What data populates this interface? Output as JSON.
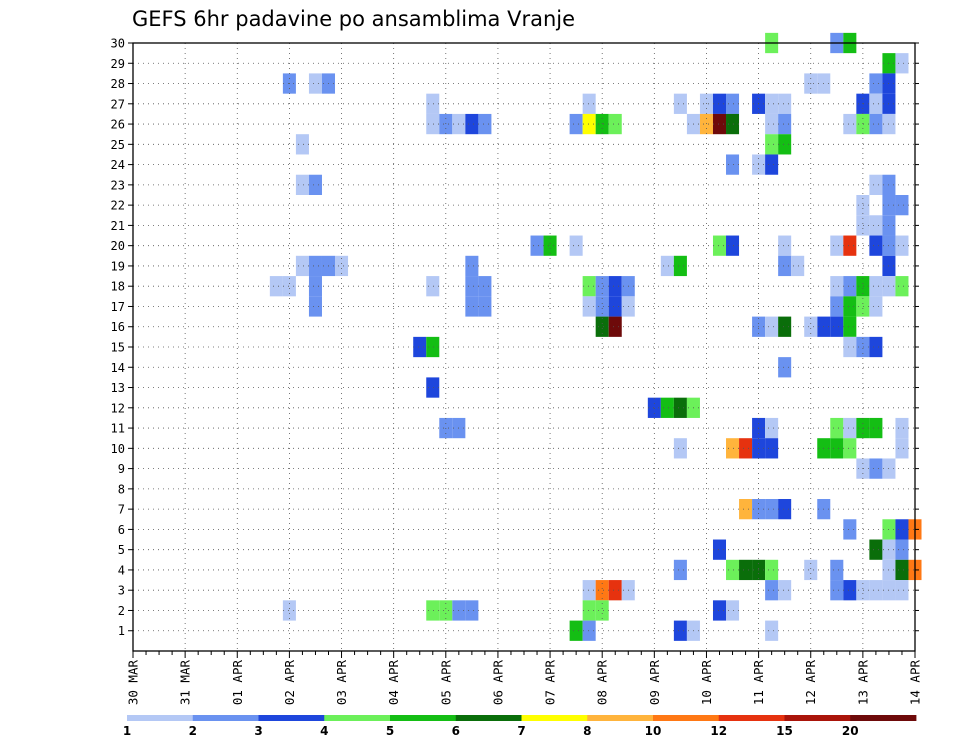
{
  "chart_data": {
    "type": "heatmap",
    "title": "GEFS 6hr padavine po ansamblima Vranje",
    "x_tick_labels": [
      "30 MAR",
      "31 MAR",
      "01 APR",
      "02 APR",
      "03 APR",
      "04 APR",
      "05 APR",
      "06 APR",
      "07 APR",
      "08 APR",
      "09 APR",
      "10 APR",
      "11 APR",
      "12 APR",
      "13 APR",
      "14 APR"
    ],
    "y_tick_labels": [
      "1",
      "2",
      "3",
      "4",
      "5",
      "6",
      "7",
      "8",
      "9",
      "10",
      "11",
      "12",
      "13",
      "14",
      "15",
      "16",
      "17",
      "18",
      "19",
      "20",
      "21",
      "22",
      "23",
      "24",
      "25",
      "26",
      "27",
      "28",
      "29",
      "30"
    ],
    "xlim": [
      "30 MAR 00Z",
      "14 APR 00Z"
    ],
    "time_step_hours": 6,
    "ylim": [
      1,
      30
    ],
    "grid": true,
    "legend": {
      "placement": "bottom",
      "labels": [
        "1",
        "2",
        "3",
        "4",
        "5",
        "6",
        "7",
        "8",
        "10",
        "12",
        "15",
        "20"
      ],
      "colors": [
        "#b4c8f5",
        "#6a92f0",
        "#1e46dc",
        "#6cf05a",
        "#14be14",
        "#0a6e0a",
        "#ffff00",
        "#ffb43c",
        "#ff7814",
        "#e6320f",
        "#aa140a",
        "#6e0a0a"
      ]
    },
    "cells": [
      {
        "t": "02 APR 00Z",
        "m": 28,
        "v": 2.5
      },
      {
        "t": "02 APR 12Z",
        "m": 28,
        "v": 1.5
      },
      {
        "t": "02 APR 18Z",
        "m": 28,
        "v": 2.5
      },
      {
        "t": "02 APR 06Z",
        "m": 25,
        "v": 1.5
      },
      {
        "t": "02 APR 06Z",
        "m": 23,
        "v": 1.5
      },
      {
        "t": "02 APR 12Z",
        "m": 23,
        "v": 2.5
      },
      {
        "t": "02 APR 06Z",
        "m": 19,
        "v": 1.5
      },
      {
        "t": "02 APR 12Z",
        "m": 19,
        "v": 2.5
      },
      {
        "t": "02 APR 18Z",
        "m": 19,
        "v": 2.5
      },
      {
        "t": "03 APR 00Z",
        "m": 19,
        "v": 1.5
      },
      {
        "t": "01 APR 18Z",
        "m": 18,
        "v": 1.5
      },
      {
        "t": "02 APR 00Z",
        "m": 18,
        "v": 1.5
      },
      {
        "t": "02 APR 12Z",
        "m": 18,
        "v": 2.5
      },
      {
        "t": "02 APR 12Z",
        "m": 17,
        "v": 2.5
      },
      {
        "t": "02 APR 00Z",
        "m": 2,
        "v": 1.5
      },
      {
        "t": "04 APR 18Z",
        "m": 27,
        "v": 1.5
      },
      {
        "t": "04 APR 18Z",
        "m": 26,
        "v": 1.5
      },
      {
        "t": "05 APR 00Z",
        "m": 26,
        "v": 2.5
      },
      {
        "t": "05 APR 06Z",
        "m": 26,
        "v": 1.5
      },
      {
        "t": "05 APR 12Z",
        "m": 26,
        "v": 3.5
      },
      {
        "t": "05 APR 18Z",
        "m": 26,
        "v": 2.5
      },
      {
        "t": "05 APR 12Z",
        "m": 19,
        "v": 2.5
      },
      {
        "t": "04 APR 18Z",
        "m": 18,
        "v": 1.5
      },
      {
        "t": "05 APR 12Z",
        "m": 18,
        "v": 2.5
      },
      {
        "t": "05 APR 18Z",
        "m": 18,
        "v": 2.5
      },
      {
        "t": "05 APR 12Z",
        "m": 17,
        "v": 2.5
      },
      {
        "t": "05 APR 18Z",
        "m": 17,
        "v": 2.5
      },
      {
        "t": "04 APR 12Z",
        "m": 15,
        "v": 3.5
      },
      {
        "t": "04 APR 18Z",
        "m": 15,
        "v": 5.5
      },
      {
        "t": "04 APR 18Z",
        "m": 13,
        "v": 3.5
      },
      {
        "t": "05 APR 00Z",
        "m": 11,
        "v": 2.5
      },
      {
        "t": "05 APR 06Z",
        "m": 11,
        "v": 2.5
      },
      {
        "t": "04 APR 18Z",
        "m": 2,
        "v": 4.5
      },
      {
        "t": "05 APR 00Z",
        "m": 2,
        "v": 4.5
      },
      {
        "t": "05 APR 06Z",
        "m": 2,
        "v": 2.5
      },
      {
        "t": "05 APR 12Z",
        "m": 2,
        "v": 2.5
      },
      {
        "t": "07 APR 18Z",
        "m": 27,
        "v": 1.5
      },
      {
        "t": "07 APR 12Z",
        "m": 26,
        "v": 2.5
      },
      {
        "t": "07 APR 18Z",
        "m": 26,
        "v": 7.5
      },
      {
        "t": "08 APR 00Z",
        "m": 26,
        "v": 5.5
      },
      {
        "t": "08 APR 06Z",
        "m": 26,
        "v": 4.5
      },
      {
        "t": "06 APR 18Z",
        "m": 20,
        "v": 2.5
      },
      {
        "t": "07 APR 00Z",
        "m": 20,
        "v": 5.5
      },
      {
        "t": "07 APR 12Z",
        "m": 20,
        "v": 1.5
      },
      {
        "t": "07 APR 18Z",
        "m": 18,
        "v": 4.5
      },
      {
        "t": "08 APR 00Z",
        "m": 18,
        "v": 2.5
      },
      {
        "t": "08 APR 06Z",
        "m": 18,
        "v": 3.5
      },
      {
        "t": "08 APR 12Z",
        "m": 18,
        "v": 2.5
      },
      {
        "t": "07 APR 18Z",
        "m": 17,
        "v": 1.5
      },
      {
        "t": "08 APR 00Z",
        "m": 17,
        "v": 2.5
      },
      {
        "t": "08 APR 06Z",
        "m": 17,
        "v": 3.5
      },
      {
        "t": "08 APR 12Z",
        "m": 17,
        "v": 1.5
      },
      {
        "t": "08 APR 00Z",
        "m": 16,
        "v": 6.5
      },
      {
        "t": "08 APR 06Z",
        "m": 16,
        "v": 25
      },
      {
        "t": "07 APR 18Z",
        "m": 3,
        "v": 1.5
      },
      {
        "t": "08 APR 00Z",
        "m": 3,
        "v": 11
      },
      {
        "t": "08 APR 06Z",
        "m": 3,
        "v": 13
      },
      {
        "t": "08 APR 12Z",
        "m": 3,
        "v": 1.5
      },
      {
        "t": "07 APR 18Z",
        "m": 2,
        "v": 4.5
      },
      {
        "t": "08 APR 00Z",
        "m": 2,
        "v": 4.5
      },
      {
        "t": "07 APR 12Z",
        "m": 1,
        "v": 5.5
      },
      {
        "t": "07 APR 18Z",
        "m": 1,
        "v": 2.5
      },
      {
        "t": "09 APR 12Z",
        "m": 27,
        "v": 1.5
      },
      {
        "t": "10 APR 00Z",
        "m": 27,
        "v": 1.5
      },
      {
        "t": "10 APR 06Z",
        "m": 27,
        "v": 3.5
      },
      {
        "t": "10 APR 12Z",
        "m": 27,
        "v": 2.5
      },
      {
        "t": "11 APR 00Z",
        "m": 27,
        "v": 3.5
      },
      {
        "t": "11 APR 06Z",
        "m": 27,
        "v": 1.5
      },
      {
        "t": "11 APR 12Z",
        "m": 27,
        "v": 1.5
      },
      {
        "t": "09 APR 18Z",
        "m": 26,
        "v": 1.5
      },
      {
        "t": "10 APR 00Z",
        "m": 26,
        "v": 8.5
      },
      {
        "t": "10 APR 06Z",
        "m": 26,
        "v": 25
      },
      {
        "t": "10 APR 12Z",
        "m": 26,
        "v": 6.5
      },
      {
        "t": "11 APR 06Z",
        "m": 26,
        "v": 1.5
      },
      {
        "t": "11 APR 12Z",
        "m": 26,
        "v": 2.5
      },
      {
        "t": "11 APR 06Z",
        "m": 25,
        "v": 4.5
      },
      {
        "t": "11 APR 12Z",
        "m": 25,
        "v": 5.5
      },
      {
        "t": "10 APR 12Z",
        "m": 24,
        "v": 2.5
      },
      {
        "t": "11 APR 00Z",
        "m": 24,
        "v": 1.5
      },
      {
        "t": "11 APR 06Z",
        "m": 24,
        "v": 3.5
      },
      {
        "t": "10 APR 06Z",
        "m": 20,
        "v": 4.5
      },
      {
        "t": "10 APR 12Z",
        "m": 20,
        "v": 3.5
      },
      {
        "t": "11 APR 12Z",
        "m": 20,
        "v": 1.5
      },
      {
        "t": "09 APR 06Z",
        "m": 19,
        "v": 1.5
      },
      {
        "t": "09 APR 12Z",
        "m": 19,
        "v": 5.5
      },
      {
        "t": "11 APR 12Z",
        "m": 19,
        "v": 2.5
      },
      {
        "t": "11 APR 18Z",
        "m": 19,
        "v": 1.5
      },
      {
        "t": "11 APR 00Z",
        "m": 16,
        "v": 2.5
      },
      {
        "t": "11 APR 06Z",
        "m": 16,
        "v": 1.5
      },
      {
        "t": "11 APR 12Z",
        "m": 16,
        "v": 6.5
      },
      {
        "t": "11 APR 12Z",
        "m": 14,
        "v": 2.5
      },
      {
        "t": "09 APR 00Z",
        "m": 12,
        "v": 3.5
      },
      {
        "t": "09 APR 06Z",
        "m": 12,
        "v": 5.5
      },
      {
        "t": "09 APR 12Z",
        "m": 12,
        "v": 6.5
      },
      {
        "t": "09 APR 18Z",
        "m": 12,
        "v": 4.5
      },
      {
        "t": "11 APR 00Z",
        "m": 11,
        "v": 3.5
      },
      {
        "t": "11 APR 06Z",
        "m": 11,
        "v": 1.5
      },
      {
        "t": "09 APR 12Z",
        "m": 10,
        "v": 1.5
      },
      {
        "t": "10 APR 12Z",
        "m": 10,
        "v": 9
      },
      {
        "t": "10 APR 18Z",
        "m": 10,
        "v": 13
      },
      {
        "t": "11 APR 00Z",
        "m": 10,
        "v": 3.5
      },
      {
        "t": "11 APR 06Z",
        "m": 10,
        "v": 3.5
      },
      {
        "t": "10 APR 18Z",
        "m": 7,
        "v": 9
      },
      {
        "t": "11 APR 00Z",
        "m": 7,
        "v": 2.5
      },
      {
        "t": "11 APR 06Z",
        "m": 7,
        "v": 2.5
      },
      {
        "t": "11 APR 12Z",
        "m": 7,
        "v": 3.5
      },
      {
        "t": "10 APR 06Z",
        "m": 5,
        "v": 3.5
      },
      {
        "t": "09 APR 12Z",
        "m": 4,
        "v": 2.5
      },
      {
        "t": "10 APR 12Z",
        "m": 4,
        "v": 4.5
      },
      {
        "t": "10 APR 18Z",
        "m": 4,
        "v": 6.5
      },
      {
        "t": "11 APR 00Z",
        "m": 4,
        "v": 6.5
      },
      {
        "t": "11 APR 06Z",
        "m": 4,
        "v": 4.5
      },
      {
        "t": "11 APR 06Z",
        "m": 3,
        "v": 2.5
      },
      {
        "t": "11 APR 12Z",
        "m": 3,
        "v": 1.5
      },
      {
        "t": "10 APR 06Z",
        "m": 2,
        "v": 3.5
      },
      {
        "t": "10 APR 12Z",
        "m": 2,
        "v": 1.5
      },
      {
        "t": "09 APR 12Z",
        "m": 1,
        "v": 3.5
      },
      {
        "t": "09 APR 18Z",
        "m": 1,
        "v": 1.5
      },
      {
        "t": "11 APR 06Z",
        "m": 1,
        "v": 1.5
      },
      {
        "t": "12 APR 12Z",
        "m": 30,
        "v": 2.5
      },
      {
        "t": "12 APR 18Z",
        "m": 30,
        "v": 5.5
      },
      {
        "t": "11 APR 06Z",
        "m": 30,
        "v": 4.5
      },
      {
        "t": "13 APR 12Z",
        "m": 29,
        "v": 5.5
      },
      {
        "t": "13 APR 18Z",
        "m": 29,
        "v": 1.5
      },
      {
        "t": "12 APR 00Z",
        "m": 28,
        "v": 1.5
      },
      {
        "t": "12 APR 06Z",
        "m": 28,
        "v": 1.5
      },
      {
        "t": "13 APR 06Z",
        "m": 28,
        "v": 2.5
      },
      {
        "t": "13 APR 12Z",
        "m": 28,
        "v": 3.5
      },
      {
        "t": "13 APR 00Z",
        "m": 27,
        "v": 3.5
      },
      {
        "t": "13 APR 06Z",
        "m": 27,
        "v": 1.5
      },
      {
        "t": "13 APR 12Z",
        "m": 27,
        "v": 3.5
      },
      {
        "t": "12 APR 18Z",
        "m": 26,
        "v": 1.5
      },
      {
        "t": "13 APR 06Z",
        "m": 26,
        "v": 2.5
      },
      {
        "t": "13 APR 00Z",
        "m": 26,
        "v": 4.5
      },
      {
        "t": "13 APR 12Z",
        "m": 26,
        "v": 1.5
      },
      {
        "t": "13 APR 06Z",
        "m": 23,
        "v": 1.5
      },
      {
        "t": "13 APR 12Z",
        "m": 23,
        "v": 2.5
      },
      {
        "t": "13 APR 00Z",
        "m": 22,
        "v": 1.5
      },
      {
        "t": "13 APR 12Z",
        "m": 22,
        "v": 2.5
      },
      {
        "t": "13 APR 18Z",
        "m": 22,
        "v": 2.5
      },
      {
        "t": "13 APR 00Z",
        "m": 21,
        "v": 1.5
      },
      {
        "t": "13 APR 06Z",
        "m": 21,
        "v": 1.5
      },
      {
        "t": "13 APR 12Z",
        "m": 21,
        "v": 2.5
      },
      {
        "t": "12 APR 12Z",
        "m": 20,
        "v": 1.5
      },
      {
        "t": "12 APR 18Z",
        "m": 20,
        "v": 13
      },
      {
        "t": "13 APR 06Z",
        "m": 20,
        "v": 3.5
      },
      {
        "t": "13 APR 12Z",
        "m": 20,
        "v": 2.5
      },
      {
        "t": "13 APR 18Z",
        "m": 20,
        "v": 1.5
      },
      {
        "t": "13 APR 12Z",
        "m": 19,
        "v": 3.5
      },
      {
        "t": "12 APR 12Z",
        "m": 18,
        "v": 1.5
      },
      {
        "t": "12 APR 18Z",
        "m": 18,
        "v": 2.5
      },
      {
        "t": "13 APR 00Z",
        "m": 18,
        "v": 5.5
      },
      {
        "t": "13 APR 06Z",
        "m": 18,
        "v": 1.5
      },
      {
        "t": "13 APR 12Z",
        "m": 18,
        "v": 1.5
      },
      {
        "t": "13 APR 18Z",
        "m": 18,
        "v": 4.5
      },
      {
        "t": "12 APR 12Z",
        "m": 17,
        "v": 2.5
      },
      {
        "t": "12 APR 18Z",
        "m": 17,
        "v": 5.5
      },
      {
        "t": "13 APR 00Z",
        "m": 17,
        "v": 4.5
      },
      {
        "t": "13 APR 06Z",
        "m": 17,
        "v": 1.5
      },
      {
        "t": "12 APR 06Z",
        "m": 16,
        "v": 3.5
      },
      {
        "t": "12 APR 12Z",
        "m": 16,
        "v": 3.5
      },
      {
        "t": "12 APR 18Z",
        "m": 16,
        "v": 5.5
      },
      {
        "t": "12 APR 00Z",
        "m": 16,
        "v": 1.5
      },
      {
        "t": "12 APR 18Z",
        "m": 15,
        "v": 1.5
      },
      {
        "t": "13 APR 00Z",
        "m": 15,
        "v": 2.5
      },
      {
        "t": "13 APR 06Z",
        "m": 15,
        "v": 3.5
      },
      {
        "t": "12 APR 12Z",
        "m": 11,
        "v": 4.5
      },
      {
        "t": "12 APR 18Z",
        "m": 11,
        "v": 1.5
      },
      {
        "t": "13 APR 00Z",
        "m": 11,
        "v": 5.5
      },
      {
        "t": "13 APR 06Z",
        "m": 11,
        "v": 5.5
      },
      {
        "t": "13 APR 18Z",
        "m": 11,
        "v": 1.5
      },
      {
        "t": "12 APR 06Z",
        "m": 10,
        "v": 5.5
      },
      {
        "t": "12 APR 12Z",
        "m": 10,
        "v": 5.5
      },
      {
        "t": "12 APR 18Z",
        "m": 10,
        "v": 4.5
      },
      {
        "t": "13 APR 18Z",
        "m": 10,
        "v": 1.5
      },
      {
        "t": "13 APR 00Z",
        "m": 9,
        "v": 1.5
      },
      {
        "t": "13 APR 06Z",
        "m": 9,
        "v": 2.5
      },
      {
        "t": "13 APR 12Z",
        "m": 9,
        "v": 1.5
      },
      {
        "t": "12 APR 06Z",
        "m": 7,
        "v": 2.5
      },
      {
        "t": "12 APR 18Z",
        "m": 6,
        "v": 2.5
      },
      {
        "t": "13 APR 12Z",
        "m": 6,
        "v": 4.5
      },
      {
        "t": "13 APR 18Z",
        "m": 6,
        "v": 3.5
      },
      {
        "t": "14 APR 00Z",
        "m": 6,
        "v": 11
      },
      {
        "t": "13 APR 06Z",
        "m": 5,
        "v": 6.5
      },
      {
        "t": "13 APR 12Z",
        "m": 5,
        "v": 1.5
      },
      {
        "t": "13 APR 18Z",
        "m": 5,
        "v": 2.5
      },
      {
        "t": "12 APR 00Z",
        "m": 4,
        "v": 1.5
      },
      {
        "t": "12 APR 12Z",
        "m": 4,
        "v": 2.5
      },
      {
        "t": "13 APR 12Z",
        "m": 4,
        "v": 1.5
      },
      {
        "t": "13 APR 18Z",
        "m": 4,
        "v": 6.5
      },
      {
        "t": "14 APR 00Z",
        "m": 4,
        "v": 11
      },
      {
        "t": "12 APR 12Z",
        "m": 3,
        "v": 2.5
      },
      {
        "t": "12 APR 18Z",
        "m": 3,
        "v": 3.5
      },
      {
        "t": "13 APR 00Z",
        "m": 3,
        "v": 1.5
      },
      {
        "t": "13 APR 06Z",
        "m": 3,
        "v": 1.5
      },
      {
        "t": "13 APR 12Z",
        "m": 3,
        "v": 1.5
      },
      {
        "t": "13 APR 18Z",
        "m": 3,
        "v": 1.5
      }
    ]
  }
}
